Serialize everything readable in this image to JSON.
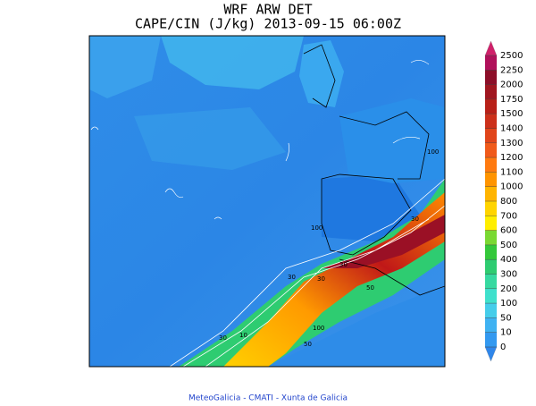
{
  "header": {
    "title": "WRF ARW DET",
    "subtitle": "CAPE/CIN (J/kg) 2013-09-15 06:00Z"
  },
  "map": {
    "contour_labels": [
      "30",
      "30",
      "30",
      "100",
      "50",
      "30",
      "10",
      "50",
      "30",
      "100",
      "100"
    ]
  },
  "colorbar": {
    "levels": [
      0,
      10,
      50,
      100,
      200,
      300,
      400,
      500,
      600,
      700,
      800,
      1000,
      1100,
      1200,
      1300,
      1400,
      1500,
      1750,
      2000,
      2250,
      2500
    ],
    "colors": [
      "#2f86ea",
      "#3399f0",
      "#3fb2f2",
      "#45cdea",
      "#3fe0cc",
      "#36d9a0",
      "#2ecc71",
      "#34c83a",
      "#7ad832",
      "#ffee00",
      "#ffd400",
      "#ffb400",
      "#ff9400",
      "#ff7a10",
      "#f05a1a",
      "#e0441a",
      "#cc301a",
      "#b82018",
      "#a01620",
      "#8c0e28",
      "#b0105a",
      "#d0206a"
    ]
  },
  "footer": "MeteoGalicia - CMATI - Xunta de Galicia"
}
